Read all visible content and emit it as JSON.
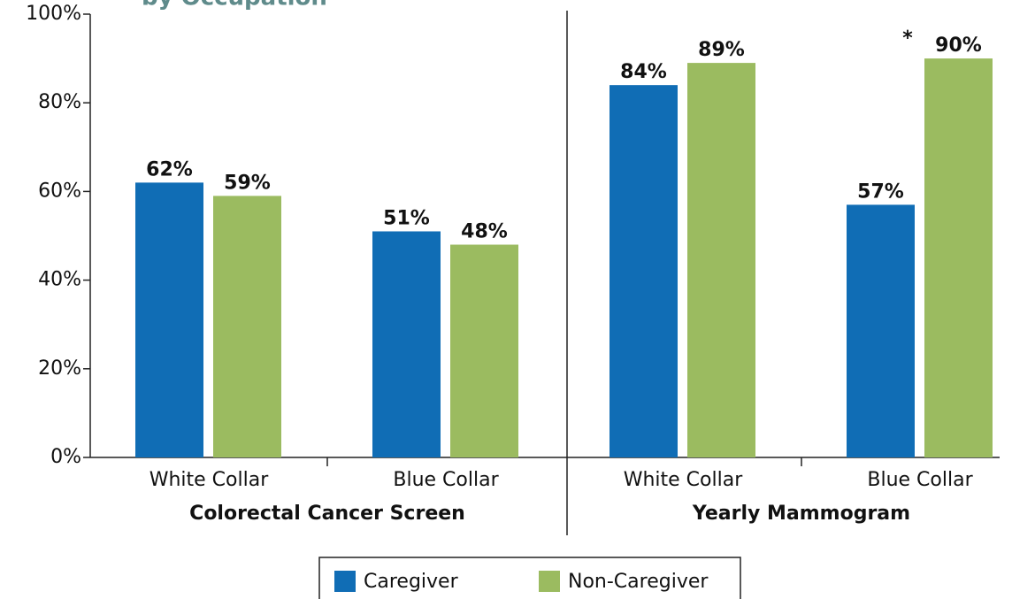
{
  "chart_data": {
    "type": "bar",
    "title": "by Occupation",
    "categories": [
      "White Collar",
      "Blue Collar",
      "White Collar",
      "Blue Collar"
    ],
    "groups": [
      "Colorectal Cancer Screen",
      "Yearly Mammogram"
    ],
    "series": [
      {
        "name": "Caregiver",
        "color": "#106db5",
        "values": [
          62,
          51,
          84,
          57
        ],
        "value_labels": [
          "62%",
          "51%",
          "84%",
          "57%"
        ]
      },
      {
        "name": "Non-Caregiver",
        "color": "#9bbb60",
        "values": [
          59,
          48,
          89,
          90
        ],
        "value_labels": [
          "59%",
          "48%",
          "89%",
          "90%"
        ]
      }
    ],
    "annotation": "*",
    "ylim": [
      0,
      100
    ],
    "yticks": [
      {
        "value": 0,
        "label": "0%"
      },
      {
        "value": 20,
        "label": "20%"
      },
      {
        "value": 40,
        "label": "40%"
      },
      {
        "value": 60,
        "label": "60%"
      },
      {
        "value": 80,
        "label": "80%"
      },
      {
        "value": 100,
        "label": "100%"
      }
    ],
    "legend": "bottom",
    "grid": false
  }
}
